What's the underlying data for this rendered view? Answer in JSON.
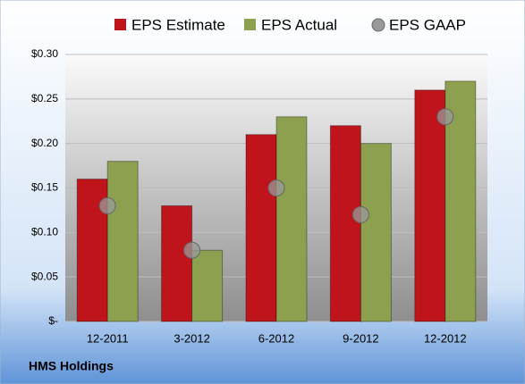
{
  "chart_data": {
    "type": "bar",
    "caption": "HMS Holdings",
    "categories": [
      "12-2011",
      "3-2012",
      "6-2012",
      "9-2012",
      "12-2012"
    ],
    "series": [
      {
        "name": "EPS Estimate",
        "color": "#c0141c",
        "type": "bar",
        "values": [
          0.16,
          0.13,
          0.21,
          0.22,
          0.26
        ]
      },
      {
        "name": "EPS Actual",
        "color": "#8ca050",
        "type": "bar",
        "values": [
          0.18,
          0.08,
          0.23,
          0.2,
          0.27
        ]
      },
      {
        "name": "EPS GAAP",
        "color": "#9a9a9a",
        "type": "scatter",
        "values": [
          0.13,
          0.08,
          0.15,
          0.12,
          0.23
        ]
      }
    ],
    "ylim": [
      0,
      0.3
    ],
    "yticks": [
      {
        "value": 0,
        "label": "$-"
      },
      {
        "value": 0.05,
        "label": "$0.05"
      },
      {
        "value": 0.1,
        "label": "$0.10"
      },
      {
        "value": 0.15,
        "label": "$0.15"
      },
      {
        "value": 0.2,
        "label": "$0.20"
      },
      {
        "value": 0.25,
        "label": "$0.25"
      },
      {
        "value": 0.3,
        "label": "$0.30"
      }
    ],
    "grid": true
  }
}
